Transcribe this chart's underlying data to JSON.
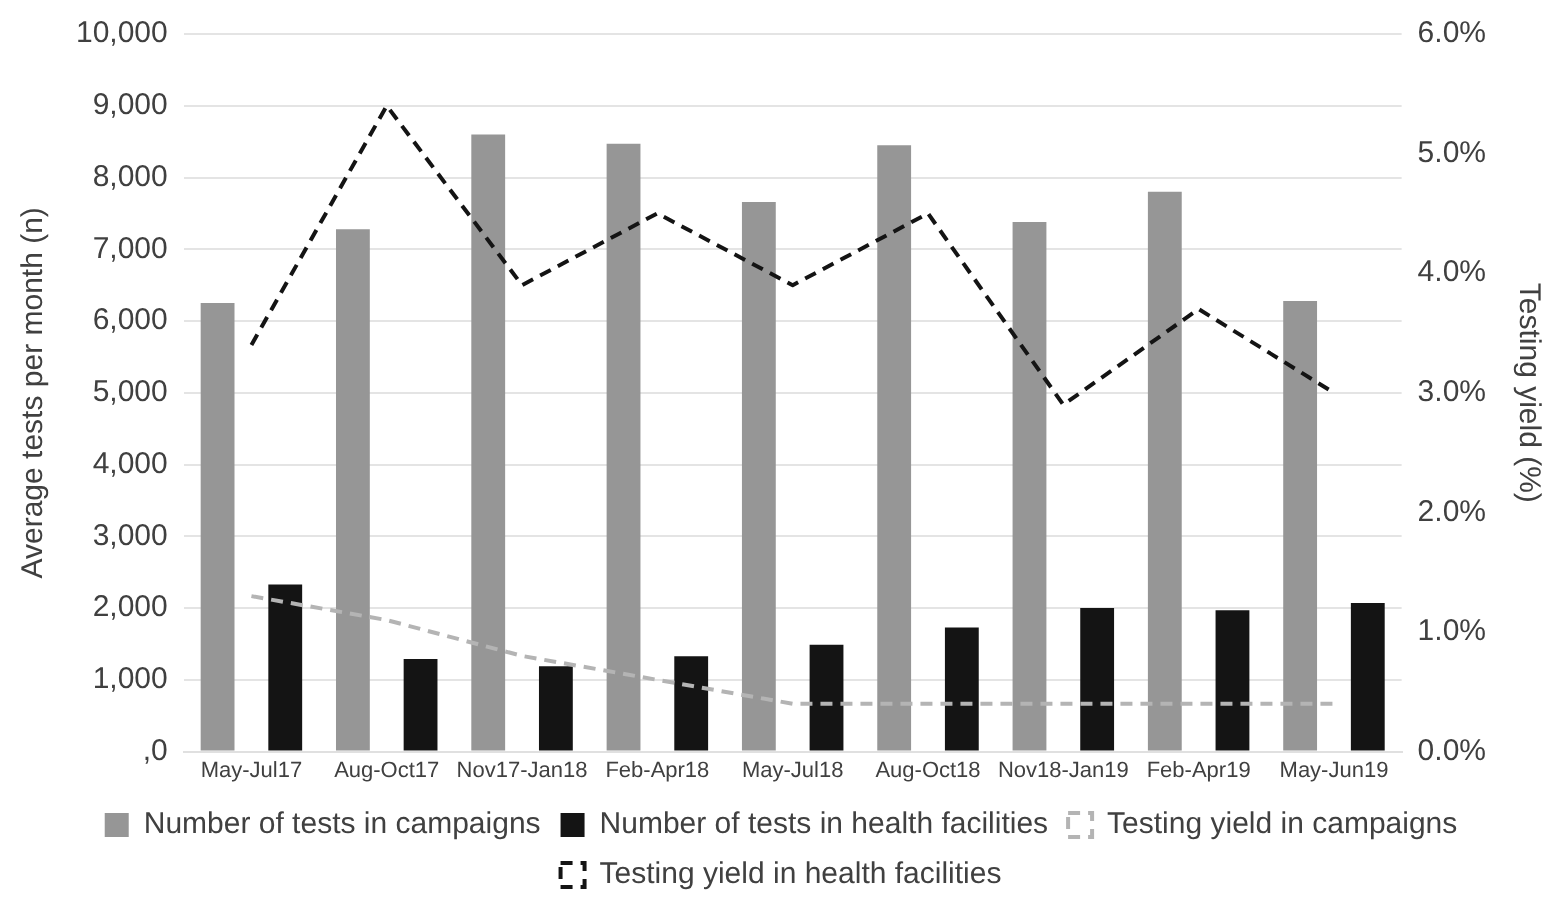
{
  "chart_data": {
    "type": "bar",
    "ylabel": "Average tests per month (n)",
    "y2label": "Testing yield (%)",
    "categories": [
      "May-Jul17",
      "Aug-Oct17",
      "Nov17-Jan18",
      "Feb-Apr18",
      "May-Jul18",
      "Aug-Oct18",
      "Nov18-Jan19",
      "Feb-Apr19",
      "May-Jun19"
    ],
    "series": [
      {
        "name": "Number of tests in campaigns",
        "color": "#969696",
        "values": [
          6250,
          7280,
          8600,
          8470,
          7660,
          8450,
          7380,
          7800,
          6280
        ]
      },
      {
        "name": "Number of tests in health facilities",
        "color": "#141414",
        "values": [
          2330,
          1290,
          1190,
          1330,
          1490,
          1730,
          2000,
          1970,
          2070
        ]
      },
      {
        "name": "Testing yield in campaigns",
        "type": "line",
        "axis": "y2",
        "line_style": "dashed",
        "color": "#b4b4b4",
        "values": [
          1.3,
          1.1,
          0.8,
          0.6,
          0.4,
          0.4,
          0.4,
          0.4,
          0.4
        ]
      },
      {
        "name": "Testing yield in health facilities",
        "type": "line",
        "axis": "y2",
        "line_style": "dashed",
        "color": "#141414",
        "values": [
          3.4,
          5.4,
          3.9,
          4.5,
          3.9,
          4.5,
          2.9,
          3.7,
          3.0
        ]
      }
    ],
    "ylim": [
      0,
      10000
    ],
    "yticks": [
      {
        "value": 0,
        "label": ",0"
      },
      {
        "value": 1000,
        "label": "1,000"
      },
      {
        "value": 2000,
        "label": "2,000"
      },
      {
        "value": 3000,
        "label": "3,000"
      },
      {
        "value": 4000,
        "label": "4,000"
      },
      {
        "value": 5000,
        "label": "5,000"
      },
      {
        "value": 6000,
        "label": "6,000"
      },
      {
        "value": 7000,
        "label": "7,000"
      },
      {
        "value": 8000,
        "label": "8,000"
      },
      {
        "value": 9000,
        "label": "9,000"
      },
      {
        "value": 10000,
        "label": "10,000"
      }
    ],
    "y2lim": [
      0,
      6
    ],
    "y2ticks": [
      {
        "value": 0,
        "label": "0.0%"
      },
      {
        "value": 1,
        "label": "1.0%"
      },
      {
        "value": 2,
        "label": "2.0%"
      },
      {
        "value": 3,
        "label": "3.0%"
      },
      {
        "value": 4,
        "label": "4.0%"
      },
      {
        "value": 5,
        "label": "5.0%"
      },
      {
        "value": 6,
        "label": "6.0%"
      }
    ],
    "grid": "y",
    "legend": "bottom",
    "marker": "none"
  }
}
